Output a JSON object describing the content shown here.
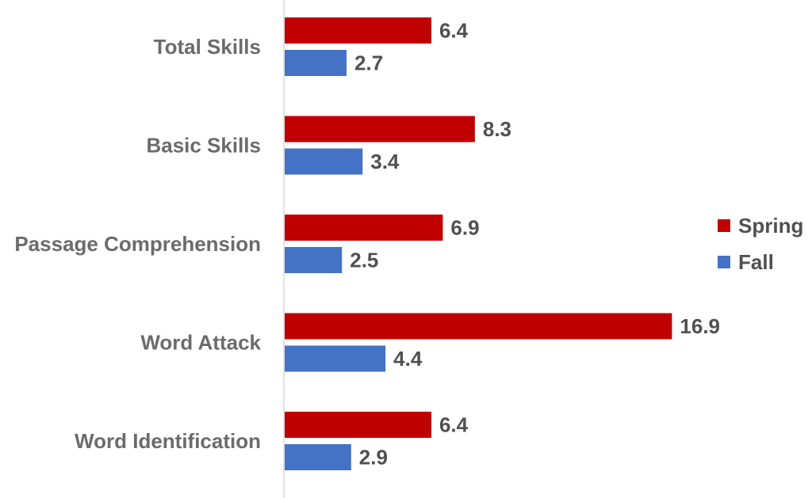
{
  "chart_data": {
    "type": "bar",
    "orientation": "horizontal",
    "categories": [
      "Total Skills",
      "Basic Skills",
      "Passage Comprehension",
      "Word Attack",
      "Word Identification"
    ],
    "series": [
      {
        "name": "Spring",
        "color": "#c00000",
        "values": [
          6.4,
          8.3,
          6.9,
          16.9,
          6.4
        ]
      },
      {
        "name": "Fall",
        "color": "#4472c4",
        "values": [
          2.7,
          3.4,
          2.5,
          4.4,
          2.9
        ]
      }
    ],
    "data_labels": true,
    "xlim": [
      0,
      18
    ],
    "grid": false,
    "legend_position": "right",
    "title": "",
    "xlabel": "",
    "ylabel": ""
  }
}
